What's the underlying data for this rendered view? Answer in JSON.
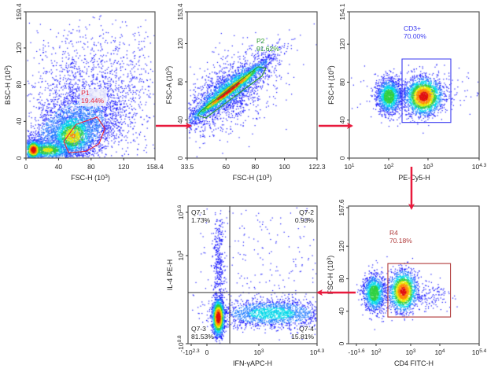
{
  "colors": {
    "arrow": "#e8193c",
    "frame": "#555555",
    "points_low": "#1414ff",
    "points_high": "#e01010"
  },
  "chart_data": [
    {
      "id": "p1",
      "type": "scatter",
      "subtype": "density-dot-plot",
      "xlabel": "FSC-H (10³)",
      "ylabel": "BSC-H (10³)",
      "x_scale": "linear",
      "xlim": [
        0,
        158.4
      ],
      "y_scale": "linear",
      "ylim": [
        0,
        159.4
      ],
      "x_ticks": [
        {
          "value": 0,
          "label": "0"
        },
        {
          "value": 40,
          "label": "40"
        },
        {
          "value": 80,
          "label": "80"
        },
        {
          "value": 120,
          "label": "120"
        },
        {
          "value": 158.4,
          "label": "158.4"
        }
      ],
      "y_ticks": [
        {
          "value": 0,
          "label": "0"
        },
        {
          "value": 40,
          "label": "40"
        },
        {
          "value": 80,
          "label": "80"
        },
        {
          "value": 120,
          "label": "120"
        },
        {
          "value": 159.4,
          "label": "159.4"
        }
      ],
      "gates": [
        {
          "type": "polygon",
          "name": "P1",
          "percent": "19.44%",
          "color": "#e8253a",
          "points": [
            [
              46.4,
              18.0
            ],
            [
              61.5,
              36.6
            ],
            [
              87.2,
              44.6
            ],
            [
              96.9,
              32.3
            ],
            [
              89.8,
              15.7
            ],
            [
              74.4,
              7.5
            ],
            [
              52.5,
              5.7
            ]
          ]
        }
      ]
    },
    {
      "id": "p2",
      "type": "scatter",
      "subtype": "density-dot-plot",
      "xlabel": "FSC-H (10³)",
      "ylabel": "FSC-A (10³)",
      "x_scale": "linear",
      "xlim": [
        33.5,
        122.3
      ],
      "y_scale": "linear",
      "ylim": [
        0,
        153.4
      ],
      "x_ticks": [
        {
          "value": 33.5,
          "label": "33.5"
        },
        {
          "value": 60,
          "label": "60"
        },
        {
          "value": 80,
          "label": "80"
        },
        {
          "value": 100,
          "label": "100"
        },
        {
          "value": 122.3,
          "label": "122.3"
        }
      ],
      "y_ticks": [
        {
          "value": 0,
          "label": "0"
        },
        {
          "value": 40,
          "label": "40"
        },
        {
          "value": 80,
          "label": "80"
        },
        {
          "value": 120,
          "label": "120"
        },
        {
          "value": 153.4,
          "label": "153.4"
        }
      ],
      "gates": [
        {
          "type": "polygon",
          "name": "P2",
          "percent": "91.62%",
          "color": "#2e9a2e",
          "points": [
            [
              40.7,
              44.8
            ],
            [
              42.5,
              48.9
            ],
            [
              81.9,
              95.7
            ],
            [
              87.3,
              94.3
            ],
            [
              84.6,
              86.0
            ],
            [
              46.1,
              42.1
            ]
          ]
        }
      ]
    },
    {
      "id": "p3",
      "type": "scatter",
      "subtype": "density-dot-plot",
      "xlabel": "PE-Cy5-H",
      "ylabel": "FSC-H (10³)",
      "x_scale": "log",
      "xlim": [
        10,
        19953
      ],
      "y_scale": "linear",
      "ylim": [
        0,
        154.1
      ],
      "x_ticks": [
        {
          "value": 10,
          "label": "10^1"
        },
        {
          "value": 100,
          "label": "10^2"
        },
        {
          "value": 1000,
          "label": "10^3"
        },
        {
          "value": 19953,
          "label": "10^4.3"
        }
      ],
      "y_ticks": [
        {
          "value": 0,
          "label": "0"
        },
        {
          "value": 40,
          "label": "40"
        },
        {
          "value": 80,
          "label": "80"
        },
        {
          "value": 120,
          "label": "120"
        },
        {
          "value": 154.1,
          "label": "154.1"
        }
      ],
      "gates": [
        {
          "type": "rectangle",
          "name": "CD3+",
          "percent": "70.00%",
          "color": "#3a3af0",
          "points": [
            [
              219,
              37.5
            ],
            [
              3800,
              104.4
            ]
          ]
        }
      ]
    },
    {
      "id": "p5",
      "type": "scatter",
      "subtype": "density-dot-plot",
      "xlabel": "CD4 FITC-H",
      "ylabel": "FSC-H (10³)",
      "x_scale": "biexponential",
      "xlim": [
        -39.8,
        251189
      ],
      "y_scale": "linear",
      "ylim": [
        0,
        167.6
      ],
      "x_ticks": [
        {
          "value": -39.8,
          "label": "-10^1.6"
        },
        {
          "value": 100,
          "label": "10^2"
        },
        {
          "value": 1000,
          "label": "10^3"
        },
        {
          "value": 10000,
          "label": "10^4"
        },
        {
          "value": 251189,
          "label": "10^5.4"
        }
      ],
      "y_ticks": [
        {
          "value": 0,
          "label": "0"
        },
        {
          "value": 40,
          "label": "40"
        },
        {
          "value": 80,
          "label": "80"
        },
        {
          "value": 120,
          "label": "120"
        },
        {
          "value": 167.6,
          "label": "167.6"
        }
      ],
      "gates": [
        {
          "type": "rectangle",
          "name": "R4",
          "percent": "70.18%",
          "color": "#b03a3a",
          "points": [
            [
              219,
              32.9
            ],
            [
              24000,
              98.8
            ]
          ]
        }
      ]
    },
    {
      "id": "p4",
      "type": "scatter",
      "subtype": "density-dot-plot",
      "xlabel": "IFN-γAPC-H",
      "ylabel": "IL-4 PE-H",
      "x_scale": "biexponential",
      "xlim": [
        -199.5,
        19953
      ],
      "y_scale": "biexponential",
      "ylim": [
        -6.3,
        3981
      ],
      "x_ticks": [
        {
          "value": -199.5,
          "label": "-10^2.3"
        },
        {
          "value": 0,
          "label": "0"
        },
        {
          "value": 1000,
          "label": "10^3"
        },
        {
          "value": 19953,
          "label": "10^4.3"
        }
      ],
      "y_ticks": [
        {
          "value": -6.3,
          "label": "-10^0.8"
        },
        {
          "value": 1000,
          "label": "10^3"
        },
        {
          "value": 3981,
          "label": "10^3.6"
        }
      ],
      "gates": [
        {
          "type": "quadrant",
          "color": "#444444",
          "threshold": [
            440,
            578
          ],
          "quadrants": [
            {
              "name": "Q7-1",
              "percent": "1.73%",
              "position": "top-left"
            },
            {
              "name": "Q7-2",
              "percent": "0.93%",
              "position": "top-right"
            },
            {
              "name": "Q7-3",
              "percent": "81.53%",
              "position": "bottom-left"
            },
            {
              "name": "Q7-4",
              "percent": "15.81%",
              "position": "bottom-right"
            }
          ]
        }
      ]
    }
  ]
}
